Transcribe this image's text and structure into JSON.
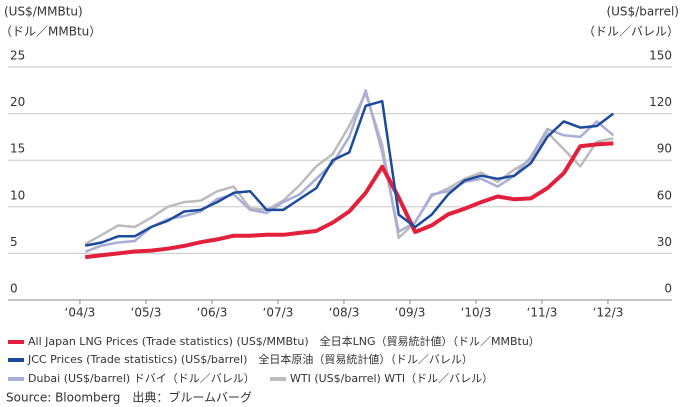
{
  "chart_data": {
    "type": "line",
    "ylabel": [
      "(US$/MMBtu)",
      "（ドル／MMBtu）"
    ],
    "y2label": [
      "(US$/barrel)",
      "（ドル／バレル）"
    ],
    "x": [
      2004.25,
      2004.5,
      2004.75,
      2005.0,
      2005.25,
      2005.5,
      2005.75,
      2006.0,
      2006.25,
      2006.5,
      2006.75,
      2007.0,
      2007.25,
      2007.5,
      2007.75,
      2008.0,
      2008.25,
      2008.5,
      2008.75,
      2009.0,
      2009.25,
      2009.5,
      2009.75,
      2010.0,
      2010.25,
      2010.5,
      2010.75,
      2011.0,
      2011.25,
      2011.5,
      2011.75,
      2012.0,
      2012.25
    ],
    "xlim": [
      2003.08,
      2013.14
    ],
    "xticks": [
      {
        "value": 2004.17,
        "label": "‘04/3"
      },
      {
        "value": 2005.17,
        "label": "‘05/3"
      },
      {
        "value": 2006.17,
        "label": "‘06/3"
      },
      {
        "value": 2007.17,
        "label": "‘07/3"
      },
      {
        "value": 2008.17,
        "label": "‘08/3"
      },
      {
        "value": 2009.17,
        "label": "‘09/3"
      },
      {
        "value": 2010.17,
        "label": "‘10/3"
      },
      {
        "value": 2011.17,
        "label": "‘11/3"
      },
      {
        "value": 2012.17,
        "label": "‘12/3"
      }
    ],
    "ylim": [
      0,
      25
    ],
    "yticks": [
      0,
      5,
      10,
      15,
      20,
      25
    ],
    "y2lim": [
      0,
      150
    ],
    "y2ticks": [
      0,
      30,
      60,
      90,
      120,
      150
    ],
    "grid": true,
    "series": [
      {
        "name": "All Japan LNG Prices (Trade statistics) (US$/MMBtu)　全日本LNG（貿易統計値）（ドル／MMBtu）",
        "color": "#e3203c",
        "width": 4,
        "values": [
          4.6,
          4.8,
          5.0,
          5.2,
          5.3,
          5.5,
          5.8,
          6.2,
          6.5,
          6.9,
          6.9,
          7.0,
          7.0,
          7.2,
          7.4,
          8.3,
          9.5,
          11.5,
          14.3,
          11.0,
          7.3,
          8.0,
          9.2,
          9.8,
          10.5,
          11.1,
          10.8,
          10.9,
          12.0,
          13.6,
          16.5,
          16.7,
          16.8
        ]
      },
      {
        "name": "JCC Prices (Trade statistics) (US$/barrel)　全日本原油（貿易統計値）（ドル／バレル）",
        "color": "#1c4a9c",
        "width": 2.5,
        "axis": "y2",
        "values": [
          35,
          37,
          41,
          41,
          47,
          51,
          57,
          58,
          63,
          69,
          70,
          58,
          58,
          65,
          72,
          90,
          95,
          125,
          128,
          55,
          47,
          55,
          68,
          77,
          80,
          78,
          80,
          88,
          105,
          115,
          111,
          112,
          120
        ]
      },
      {
        "name": "Dubai (US$/barrel) ドバイ（ドル／バレル）",
        "color": "#a9aed8",
        "width": 2.5,
        "axis": "y2",
        "values": [
          31,
          35,
          37,
          38,
          47,
          52,
          54,
          57,
          65,
          68,
          58,
          56,
          63,
          68,
          78,
          88,
          105,
          135,
          95,
          44,
          50,
          68,
          70,
          76,
          78,
          73,
          80,
          92,
          110,
          106,
          105,
          115,
          106
        ]
      },
      {
        "name": "WTI (US$/barrel) WTI（ドル／バレル）",
        "color": "#bcbcbc",
        "width": 2.5,
        "axis": "y2",
        "values": [
          36,
          42,
          48,
          47,
          53,
          60,
          63,
          64,
          70,
          73,
          59,
          58,
          64,
          74,
          86,
          94,
          112,
          133,
          100,
          40,
          50,
          67,
          72,
          78,
          82,
          76,
          84,
          90,
          108,
          97,
          86,
          102,
          104
        ]
      }
    ],
    "source": "Source: Bloomberg　出典：ブルームバーグ"
  }
}
